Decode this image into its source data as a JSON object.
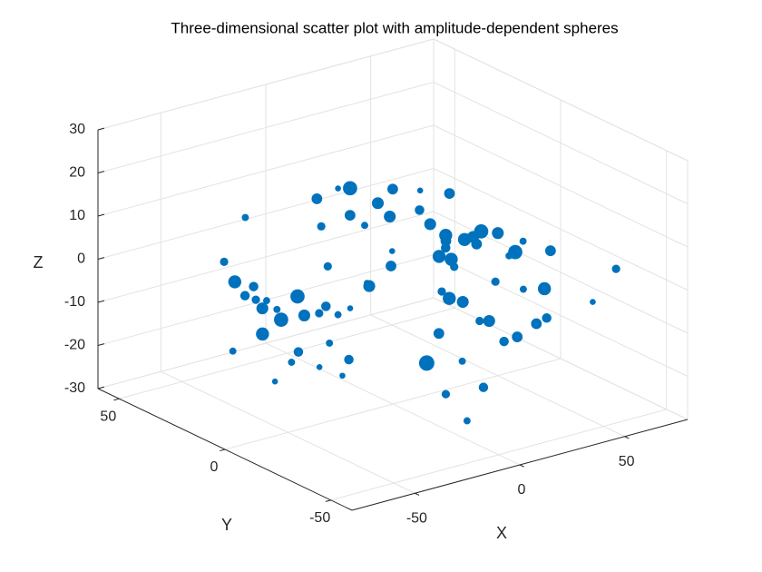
{
  "chart_data": {
    "type": "scatter3d",
    "title": "Three-dimensional scatter plot with amplitude-dependent spheres",
    "xlabel": "X",
    "ylabel": "Y",
    "zlabel": "Z",
    "xlim": [
      -80,
      80
    ],
    "ylim": [
      -60,
      60
    ],
    "zlim": [
      -30,
      30
    ],
    "xticks": [
      -50,
      0,
      50
    ],
    "yticks": [
      -50,
      0,
      50
    ],
    "zticks": [
      -30,
      -20,
      -10,
      0,
      10,
      20,
      30
    ],
    "grid": true,
    "color": "#0072BD",
    "x": [
      12,
      -30,
      45,
      -5,
      20,
      -40,
      8,
      33,
      -18,
      55,
      -25,
      0,
      15,
      -45,
      38,
      -10,
      27,
      -35,
      5,
      60,
      -20,
      42,
      -8,
      18,
      -50,
      30,
      -2,
      50,
      -28,
      10,
      -38,
      22,
      -15,
      35,
      -48,
      3,
      47,
      -22,
      16,
      -33,
      25,
      -12,
      40,
      -6,
      58,
      -42,
      7,
      -27,
      31,
      -17,
      52,
      -3,
      19,
      -36,
      44,
      -9,
      28,
      -46,
      13,
      -24,
      36,
      1,
      -31,
      23,
      -14,
      49,
      -39,
      9,
      -20,
      41,
      -1,
      26,
      -44,
      14,
      -29,
      34,
      -7,
      57,
      -16,
      21
    ],
    "y": [
      -10,
      25,
      5,
      -30,
      40,
      -5,
      15,
      -40,
      30,
      -20,
      10,
      -25,
      35,
      0,
      20,
      -45,
      -15,
      45,
      5,
      -35,
      50,
      -8,
      22,
      -50,
      12,
      30,
      -18,
      -12,
      38,
      -28,
      18,
      42,
      -38,
      8,
      28,
      -22,
      48,
      2,
      -42,
      32,
      -2,
      14,
      -32,
      36,
      -48,
      20,
      -6,
      26,
      44,
      -16,
      6,
      -44,
      -24,
      34,
      16,
      -34,
      40,
      -14,
      24,
      10,
      -26,
      46,
      0,
      -36,
      12,
      -4,
      36,
      -46,
      22,
      28,
      -30,
      4,
      16,
      -20,
      -8,
      34,
      -40,
      8,
      20,
      -12
    ],
    "z": [
      5,
      -10,
      0,
      -20,
      8,
      -15,
      12,
      -5,
      -25,
      3,
      -8,
      15,
      -18,
      -12,
      2,
      -22,
      10,
      -3,
      18,
      -6,
      -14,
      6,
      -20,
      -2,
      -10,
      9,
      -16,
      4,
      -8,
      14,
      -24,
      1,
      7,
      -12,
      -18,
      11,
      -4,
      -21,
      13,
      -9,
      16,
      -11,
      -1,
      -17,
      5,
      -7,
      20,
      -13,
      -3,
      8,
      -19,
      0,
      -23,
      10,
      -6,
      17,
      -15,
      2,
      -10,
      12,
      -2,
      -16,
      6,
      -9,
      19,
      -21,
      -5,
      14,
      -12,
      3,
      9,
      -18,
      -4,
      11,
      -14,
      -7,
      4,
      -11,
      15,
      -20
    ],
    "size": [
      8,
      3,
      6,
      4,
      9,
      2,
      7,
      5,
      3,
      6,
      4,
      8,
      2,
      5,
      7,
      3,
      9,
      4,
      6,
      2,
      5,
      7,
      3,
      6,
      8,
      4,
      10,
      3,
      5,
      7,
      2,
      6,
      4,
      8,
      3,
      5,
      7,
      2,
      9,
      4,
      6,
      3,
      8,
      5,
      4,
      7,
      2,
      9,
      3,
      6,
      7,
      4,
      5,
      3,
      8,
      6,
      2,
      5,
      7,
      4,
      3,
      9,
      4,
      6,
      2,
      5,
      8,
      3,
      7,
      5,
      4,
      6,
      3,
      8,
      5,
      2,
      7,
      4,
      6,
      3
    ]
  }
}
